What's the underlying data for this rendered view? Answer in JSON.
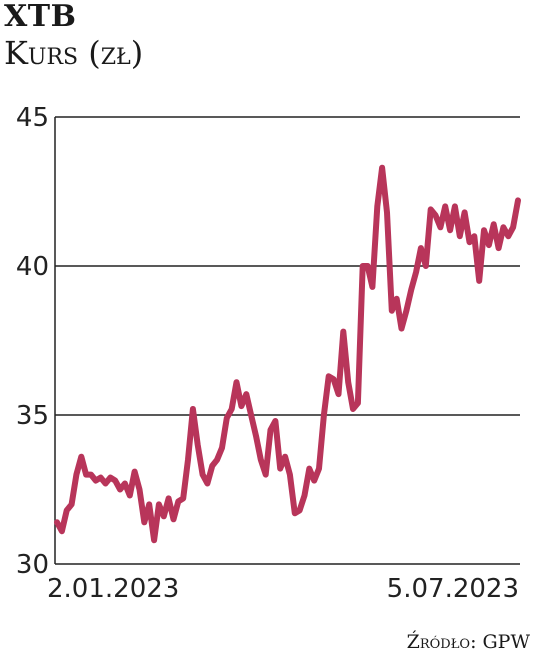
{
  "header": {
    "title": "XTB",
    "subtitle": "Kurs (zł)"
  },
  "footer": {
    "source": "Źródło: GPW"
  },
  "colors": {
    "line": "#b8355a",
    "grid": "#222222",
    "text": "#1a1a1a"
  },
  "chart_data": {
    "type": "line",
    "title": "XTB",
    "ylabel": "Kurs (zł)",
    "ylim": [
      30,
      45
    ],
    "yticks": [
      "30",
      "35",
      "40",
      "45"
    ],
    "xtick_labels": [
      "2.01.2023",
      "5.07.2023"
    ],
    "grid": "horizontal",
    "series": [
      {
        "values": [
          31.4,
          31.1,
          31.8,
          32.0,
          33.0,
          33.6,
          33.0,
          33.0,
          32.8,
          32.9,
          32.7,
          32.9,
          32.8,
          32.5,
          32.7,
          32.3,
          33.1,
          32.5,
          31.4,
          32.0,
          30.8,
          32.0,
          31.6,
          32.2,
          31.5,
          32.1,
          32.2,
          33.5,
          35.2,
          34.0,
          33.0,
          32.7,
          33.3,
          33.5,
          33.9,
          34.9,
          35.2,
          36.1,
          35.3,
          35.7,
          35.0,
          34.3,
          33.5,
          33.0,
          34.5,
          34.8,
          33.2,
          33.6,
          33.0,
          31.7,
          31.8,
          32.3,
          33.2,
          32.8,
          33.2,
          35.0,
          36.3,
          36.2,
          35.7,
          37.8,
          36.1,
          35.2,
          35.4,
          40.0,
          40.0,
          39.3,
          42.0,
          43.3,
          41.8,
          38.5,
          38.9,
          37.9,
          38.5,
          39.2,
          39.8,
          40.6,
          40.0,
          41.9,
          41.7,
          41.3,
          42.0,
          41.2,
          42.0,
          41.0,
          41.8,
          40.8,
          41.0,
          39.5,
          41.2,
          40.7,
          41.4,
          40.6,
          41.3,
          41.0,
          41.3,
          42.2
        ]
      }
    ]
  }
}
